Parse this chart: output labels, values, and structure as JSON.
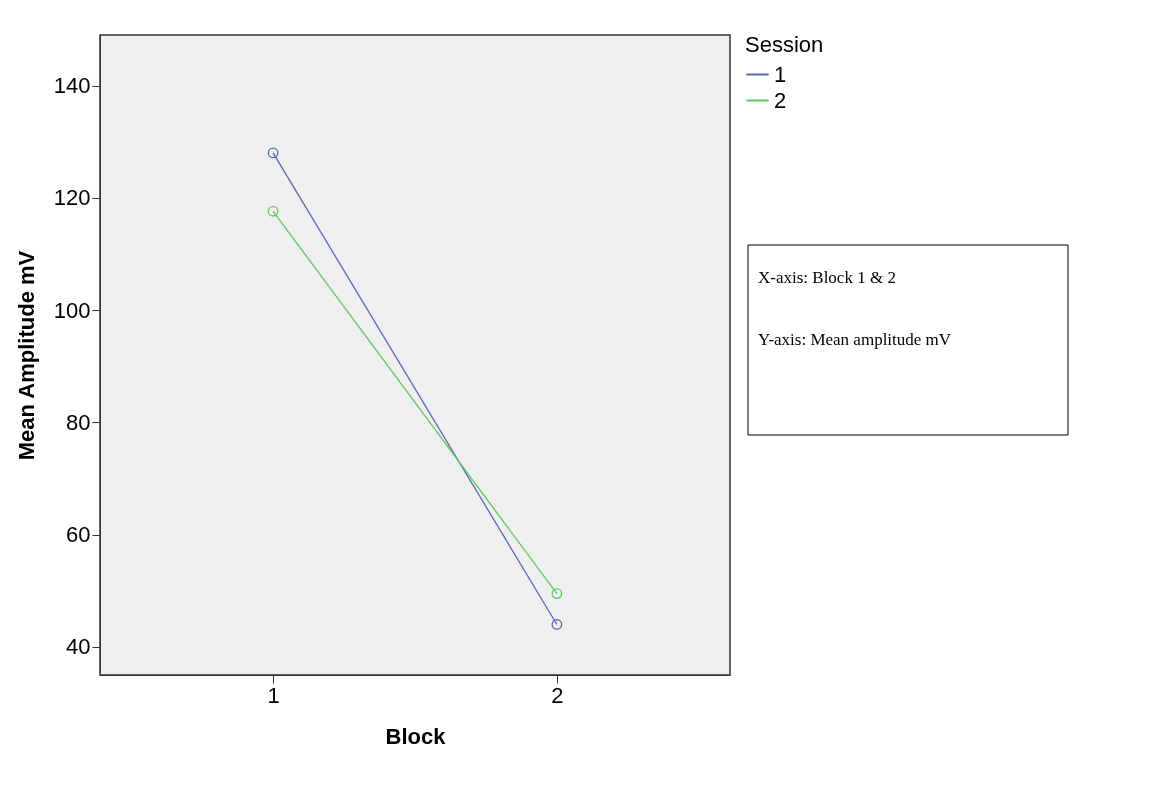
{
  "chart_data": {
    "type": "line",
    "xlabel": "Block",
    "ylabel": "Mean Amplitude mV",
    "legend_title": "Session",
    "categories": [
      "1",
      "2"
    ],
    "series": [
      {
        "name": "1",
        "color": "#5568b8",
        "values": [
          128,
          44
        ]
      },
      {
        "name": "2",
        "color": "#5cc862",
        "values": [
          117.6,
          49.5
        ]
      }
    ],
    "ylim": [
      35,
      149
    ],
    "yticks": [
      40,
      60,
      80,
      100,
      120,
      140
    ],
    "grid": false,
    "legend": "top right",
    "marker": "circle",
    "line_style": "solid",
    "annotations": [
      "X-axis: Block 1 & 2",
      "Y-axis: Mean amplitude mV"
    ]
  }
}
